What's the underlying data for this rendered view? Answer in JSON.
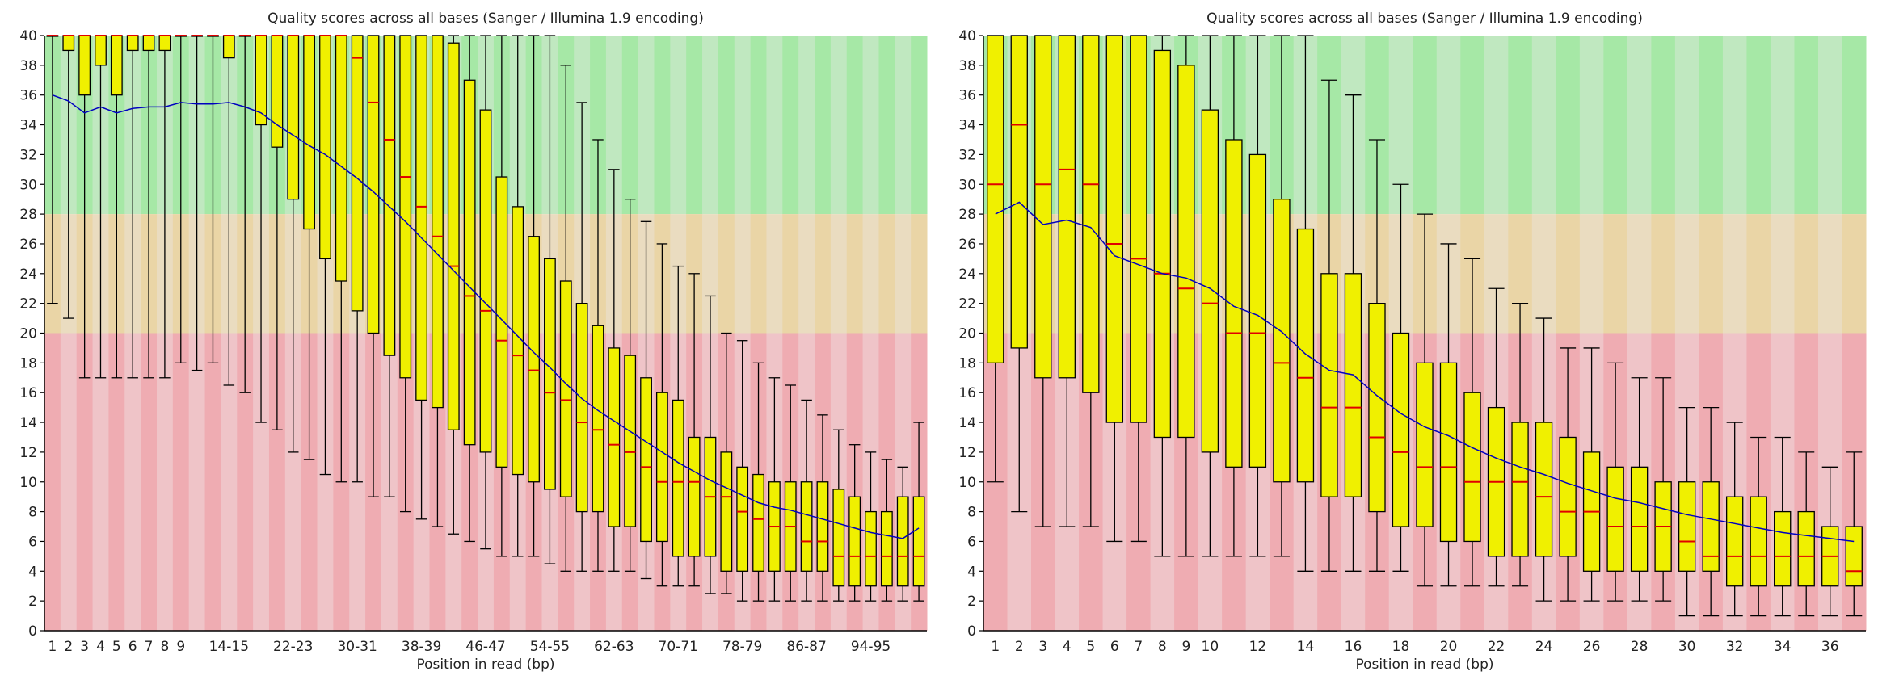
{
  "chart_data": [
    {
      "type": "box",
      "title": "Quality scores across all bases (Sanger / Illumina 1.9 encoding)",
      "xlabel": "Position in read (bp)",
      "ylabel": "",
      "ylim": [
        0,
        40
      ],
      "yticks": [
        0,
        2,
        4,
        6,
        8,
        10,
        12,
        14,
        16,
        18,
        20,
        22,
        24,
        26,
        28,
        30,
        32,
        34,
        36,
        38,
        40
      ],
      "quality_bands": [
        {
          "from": 28,
          "to": 40,
          "color_dark": "#a6e8a6",
          "color_light": "#c0e8c0"
        },
        {
          "from": 20,
          "to": 28,
          "color_dark": "#ead5a6",
          "color_light": "#eadcc0"
        },
        {
          "from": 0,
          "to": 20,
          "color_dark": "#efacb2",
          "color_light": "#efc4c8"
        }
      ],
      "colors": {
        "box": "#f0f000",
        "median": "#e00000",
        "mean": "#0000c0",
        "whisker": "#000000"
      },
      "categories": [
        "1",
        "2",
        "3",
        "4",
        "5",
        "6",
        "7",
        "8",
        "9",
        "10-11",
        "12-13",
        "14-15",
        "16-17",
        "18-19",
        "20-21",
        "22-23",
        "24-25",
        "26-27",
        "28-29",
        "30-31",
        "32-33",
        "34-35",
        "36-37",
        "38-39",
        "40-41",
        "42-43",
        "44-45",
        "46-47",
        "48-49",
        "50-51",
        "52-53",
        "54-55",
        "56-57",
        "58-59",
        "60-61",
        "62-63",
        "64-65",
        "66-67",
        "68-69",
        "70-71",
        "72-73",
        "74-75",
        "76-77",
        "78-79",
        "80-81",
        "82-83",
        "84-85",
        "86-87",
        "88-89",
        "90-91",
        "92-93",
        "94-95",
        "96-97",
        "98-99",
        "100-101"
      ],
      "tick_labels": [
        "1",
        "2",
        "3",
        "4",
        "5",
        "6",
        "7",
        "8",
        "9",
        "14-15",
        "22-23",
        "30-31",
        "38-39",
        "46-47",
        "54-55",
        "62-63",
        "70-71",
        "78-79",
        "86-87",
        "94-95"
      ],
      "mean": [
        36,
        35.6,
        34.8,
        35.2,
        34.8,
        35.1,
        35.2,
        35.2,
        35.5,
        35.4,
        35.4,
        35.5,
        35.2,
        34.8,
        34,
        33.3,
        32.6,
        32,
        31.2,
        30.4,
        29.5,
        28.5,
        27.5,
        26.4,
        25.3,
        24.2,
        23.1,
        22,
        20.9,
        19.8,
        18.7,
        17.7,
        16.6,
        15.6,
        14.8,
        14.1,
        13.4,
        12.7,
        12,
        11.3,
        10.7,
        10.1,
        9.6,
        9.1,
        8.6,
        8.3,
        8.1,
        7.8,
        7.5,
        7.2,
        6.9,
        6.6,
        6.4,
        6.2,
        6.9
      ],
      "box_low": [
        40,
        39,
        36,
        38,
        36,
        39,
        39,
        39,
        40,
        40,
        40,
        38.5,
        40,
        34,
        32.5,
        29,
        27,
        25,
        23.5,
        21.5,
        20,
        18.5,
        17,
        15.5,
        15,
        13.5,
        12.5,
        12,
        11,
        10.5,
        10,
        9.5,
        9,
        8,
        8,
        7,
        7,
        6,
        6,
        5,
        5,
        5,
        4,
        4,
        4,
        4,
        4,
        4,
        4,
        3,
        3,
        3,
        3,
        3,
        3
      ],
      "box_high": [
        40,
        40,
        40,
        40,
        40,
        40,
        40,
        40,
        40,
        40,
        40,
        40,
        40,
        40,
        40,
        40,
        40,
        40,
        40,
        40,
        40,
        40,
        40,
        40,
        40,
        39.5,
        37,
        35,
        30.5,
        28.5,
        26.5,
        25,
        23.5,
        22,
        20.5,
        19,
        18.5,
        17,
        16,
        15.5,
        13,
        13,
        12,
        11,
        10.5,
        10,
        10,
        10,
        10,
        9.5,
        9,
        8,
        8,
        9,
        9
      ],
      "median": [
        40,
        40,
        40,
        40,
        40,
        40,
        40,
        40,
        40,
        40,
        40,
        40,
        40,
        40,
        40,
        40,
        40,
        40,
        40,
        38.5,
        35.5,
        33,
        30.5,
        28.5,
        26.5,
        24.5,
        22.5,
        21.5,
        19.5,
        18.5,
        17.5,
        16,
        15.5,
        14,
        13.5,
        12.5,
        12,
        11,
        10,
        10,
        10,
        9,
        9,
        8,
        7.5,
        7,
        7,
        6,
        6,
        5,
        5,
        5,
        5,
        5,
        5
      ],
      "whisker_low": [
        22,
        21,
        17,
        17,
        17,
        17,
        17,
        17,
        18,
        17.5,
        18,
        16.5,
        16,
        14,
        13.5,
        12,
        11.5,
        10.5,
        10,
        10,
        9,
        9,
        8,
        7.5,
        7,
        6.5,
        6,
        5.5,
        5,
        5,
        5,
        4.5,
        4,
        4,
        4,
        4,
        4,
        3.5,
        3,
        3,
        3,
        2.5,
        2.5,
        2,
        2,
        2,
        2,
        2,
        2,
        2,
        2,
        2,
        2,
        2,
        2
      ],
      "whisker_high": [
        40,
        40,
        40,
        40,
        40,
        40,
        40,
        40,
        40,
        40,
        40,
        40,
        40,
        40,
        40,
        40,
        40,
        40,
        40,
        40,
        40,
        40,
        40,
        40,
        40,
        40,
        40,
        40,
        40,
        40,
        40,
        40,
        38,
        35.5,
        33,
        31,
        29,
        27.5,
        26,
        24.5,
        24,
        22.5,
        20,
        19.5,
        18,
        17,
        16.5,
        15.5,
        14.5,
        13.5,
        12.5,
        12,
        11.5,
        11,
        14
      ]
    },
    {
      "type": "box",
      "title": "Quality scores across all bases (Sanger / Illumina 1.9 encoding)",
      "xlabel": "Position in read (bp)",
      "ylabel": "",
      "ylim": [
        0,
        40
      ],
      "yticks": [
        0,
        2,
        4,
        6,
        8,
        10,
        12,
        14,
        16,
        18,
        20,
        22,
        24,
        26,
        28,
        30,
        32,
        34,
        36,
        38,
        40
      ],
      "quality_bands": [
        {
          "from": 28,
          "to": 40,
          "color_dark": "#a6e8a6",
          "color_light": "#c0e8c0"
        },
        {
          "from": 20,
          "to": 28,
          "color_dark": "#ead5a6",
          "color_light": "#eadcc0"
        },
        {
          "from": 0,
          "to": 20,
          "color_dark": "#efacb2",
          "color_light": "#efc4c8"
        }
      ],
      "colors": {
        "box": "#f0f000",
        "median": "#e00000",
        "mean": "#0000c0",
        "whisker": "#000000"
      },
      "categories": [
        "1",
        "2",
        "3",
        "4",
        "5",
        "6",
        "7",
        "8",
        "9",
        "10",
        "11",
        "12",
        "13",
        "14",
        "15",
        "16",
        "17",
        "18",
        "19",
        "20",
        "21",
        "22",
        "23",
        "24",
        "25",
        "26",
        "27",
        "28",
        "29",
        "30",
        "31",
        "32",
        "33",
        "34",
        "35",
        "36",
        "37"
      ],
      "tick_labels": [
        "1",
        "2",
        "3",
        "4",
        "5",
        "6",
        "7",
        "8",
        "9",
        "10",
        "12",
        "14",
        "16",
        "18",
        "20",
        "22",
        "24",
        "26",
        "28",
        "30",
        "32",
        "34",
        "36"
      ],
      "mean": [
        28,
        28.8,
        27.3,
        27.6,
        27.1,
        25.2,
        24.6,
        24,
        23.7,
        23,
        21.8,
        21.2,
        20.1,
        18.6,
        17.5,
        17.2,
        15.8,
        14.6,
        13.7,
        13.1,
        12.3,
        11.6,
        11,
        10.5,
        9.9,
        9.4,
        8.9,
        8.6,
        8.2,
        7.8,
        7.5,
        7.2,
        6.9,
        6.6,
        6.4,
        6.2,
        6
      ],
      "box_low": [
        18,
        19,
        17,
        17,
        16,
        14,
        14,
        13,
        13,
        12,
        11,
        11,
        10,
        10,
        9,
        9,
        8,
        7,
        7,
        6,
        6,
        5,
        5,
        5,
        5,
        4,
        4,
        4,
        4,
        4,
        4,
        3,
        3,
        3,
        3,
        3,
        3
      ],
      "box_high": [
        40,
        40,
        40,
        40,
        40,
        40,
        40,
        39,
        38,
        35,
        33,
        32,
        29,
        27,
        24,
        24,
        22,
        20,
        18,
        18,
        16,
        15,
        14,
        14,
        13,
        12,
        11,
        11,
        10,
        10,
        10,
        9,
        9,
        8,
        8,
        7,
        7
      ],
      "median": [
        30,
        34,
        30,
        31,
        30,
        26,
        25,
        24,
        23,
        22,
        20,
        20,
        18,
        17,
        15,
        15,
        13,
        12,
        11,
        11,
        10,
        10,
        10,
        9,
        8,
        8,
        7,
        7,
        7,
        6,
        5,
        5,
        5,
        5,
        5,
        5,
        4
      ],
      "whisker_low": [
        10,
        8,
        7,
        7,
        7,
        6,
        6,
        5,
        5,
        5,
        5,
        5,
        5,
        4,
        4,
        4,
        4,
        4,
        3,
        3,
        3,
        3,
        3,
        2,
        2,
        2,
        2,
        2,
        2,
        1,
        1,
        1,
        1,
        1,
        1,
        1,
        1
      ],
      "whisker_high": [
        40,
        40,
        40,
        40,
        40,
        40,
        40,
        40,
        40,
        40,
        40,
        40,
        40,
        40,
        37,
        36,
        33,
        30,
        28,
        26,
        25,
        23,
        22,
        21,
        19,
        19,
        18,
        17,
        17,
        15,
        15,
        14,
        13,
        13,
        12,
        11,
        12
      ]
    }
  ]
}
